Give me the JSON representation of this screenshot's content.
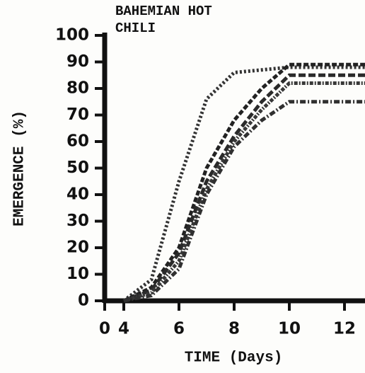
{
  "chart_data": {
    "type": "line",
    "title": "BAHEMIAN HOT CHILI",
    "xlabel": "TIME (Days)",
    "ylabel": "EMERGENCE (%)",
    "xlim": [
      0,
      12.8
    ],
    "xticks": [
      0,
      4,
      6,
      8,
      10,
      12
    ],
    "ylim": [
      0,
      100
    ],
    "yticks": [
      0,
      10,
      20,
      30,
      40,
      50,
      60,
      70,
      80,
      90,
      100
    ],
    "x": [
      4,
      5,
      6,
      7,
      8,
      9,
      10,
      12.8
    ],
    "series": [
      {
        "color": "#333333",
        "values": [
          0,
          8,
          45,
          76,
          86,
          87,
          88,
          88
        ]
      },
      {
        "color": "#222222",
        "values": [
          0,
          5,
          20,
          50,
          68,
          80,
          89,
          89
        ]
      },
      {
        "color": "#2a2a2a",
        "values": [
          0,
          4,
          18,
          45,
          62,
          75,
          85,
          85
        ]
      },
      {
        "color": "#383838",
        "values": [
          0,
          3,
          15,
          42,
          60,
          72,
          82,
          82
        ]
      },
      {
        "color": "#303030",
        "values": [
          0,
          2,
          12,
          40,
          58,
          68,
          75,
          75
        ]
      }
    ]
  }
}
